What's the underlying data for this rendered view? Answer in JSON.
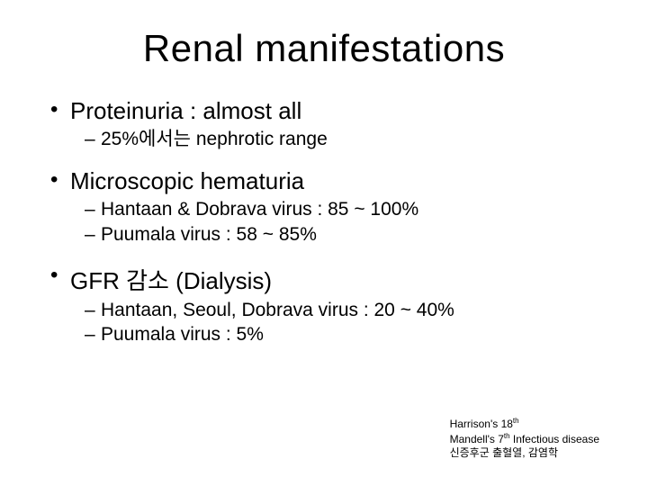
{
  "title": "Renal manifestations",
  "sections": [
    {
      "heading": "Proteinuria : almost all",
      "sub": [
        "25%에서는 nephrotic range"
      ]
    },
    {
      "heading": "Microscopic hematuria",
      "sub": [
        "Hantaan & Dobrava virus : 85 ~ 100%",
        "Puumala virus : 58 ~ 85%"
      ]
    },
    {
      "heading": "GFR 감소 (Dialysis)",
      "sub": [
        "Hantaan, Seoul, Dobrava virus : 20 ~ 40%",
        "Puumala virus : 5%"
      ]
    }
  ],
  "references": {
    "line1_a": "Harrison's 18",
    "line1_b": "th",
    "line2_a": "Mandell's 7",
    "line2_b": "th",
    "line2_c": " Infectious disease",
    "line3": "신증후군 출혈열, 감염학"
  },
  "styling": {
    "background_color": "#ffffff",
    "text_color": "#000000",
    "title_fontsize": 42,
    "bullet1_fontsize": 26,
    "bullet2_fontsize": 21,
    "ref_fontsize": 12,
    "slide_width": 720,
    "slide_height": 540
  }
}
